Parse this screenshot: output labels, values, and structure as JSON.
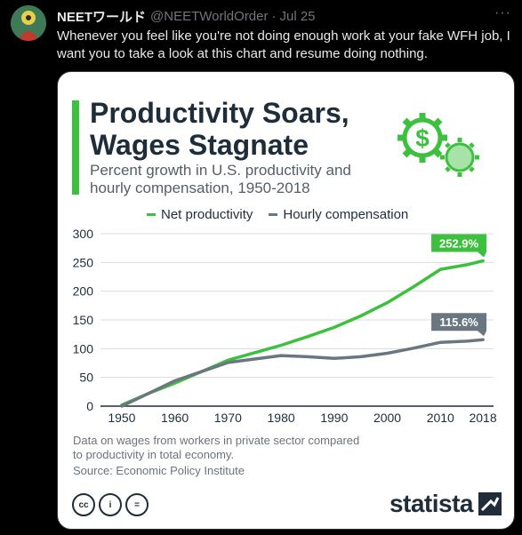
{
  "tweet": {
    "author_name": "NEETワールド",
    "handle": "@NEETWorldOrder",
    "separator": "·",
    "date": "Jul 25",
    "more_label": "···",
    "text": "Whenever you feel like you're not doing enough work at your fake WFH job, I want you to take a look at this chart and resume doing nothing."
  },
  "infographic": {
    "title_line1": "Productivity Soars,",
    "title_line2": "Wages Stagnate",
    "subtitle_line1": "Percent growth in U.S. productivity and",
    "subtitle_line2": "hourly compensation, 1950-2018",
    "footnote_line1": "Data on wages from workers in private sector compared",
    "footnote_line2": "to productivity in total economy.",
    "source": "Source: Economic Policy Institute",
    "brand": "statista",
    "license_icons": [
      "cc-icon",
      "attribution-icon",
      "no-derivatives-icon"
    ],
    "license_glyphs": [
      "cc",
      "i",
      "="
    ]
  },
  "colors": {
    "productivity": "#3dc03d",
    "compensation": "#6b7780",
    "accent": "#3dc03d"
  },
  "chart_data": {
    "type": "line",
    "x": [
      1950,
      1955,
      1960,
      1965,
      1970,
      1975,
      1980,
      1985,
      1990,
      1995,
      2000,
      2005,
      2010,
      2015,
      2018
    ],
    "series": [
      {
        "name": "Net productivity",
        "values": [
          2,
          22,
          40,
          60,
          80,
          93,
          106,
          121,
          137,
          157,
          180,
          208,
          238,
          246,
          252.9
        ]
      },
      {
        "name": "Hourly compensation",
        "values": [
          0,
          22,
          44,
          60,
          76,
          82,
          88,
          86,
          83,
          86,
          92,
          101,
          111,
          113,
          115.6
        ]
      }
    ],
    "labels": {
      "productivity_end": "252.9%",
      "compensation_end": "115.6%"
    },
    "x_ticks": [
      "1950",
      "1960",
      "1970",
      "1980",
      "1990",
      "2000",
      "2010",
      "2018"
    ],
    "y_ticks": [
      "0",
      "50",
      "100",
      "150",
      "200",
      "250",
      "300"
    ],
    "ylim": [
      0,
      300
    ],
    "xlim": [
      1946,
      2020
    ],
    "grid": "horizontal",
    "legend": "top",
    "title": "",
    "xlabel": "",
    "ylabel": ""
  }
}
